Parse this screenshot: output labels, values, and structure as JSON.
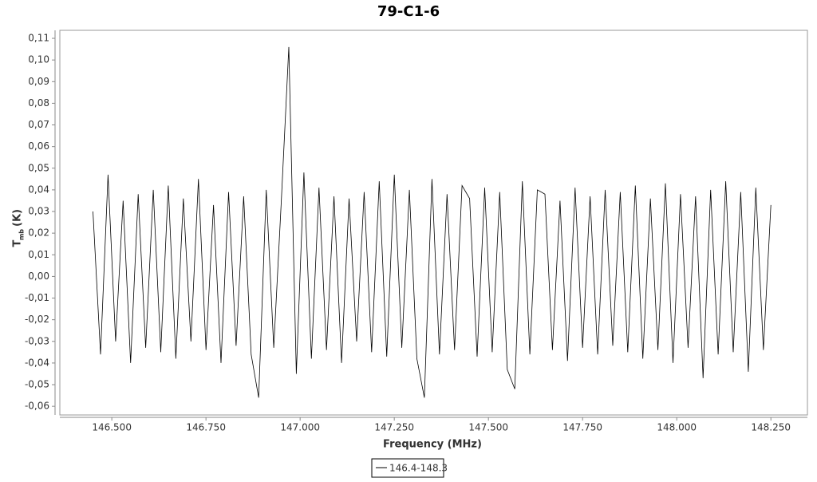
{
  "chart_data": {
    "type": "line",
    "title": "79-C1-6",
    "x_label": "Frequency (MHz)",
    "y_label": "T",
    "y_label_sub": "mb",
    "y_label_unit": "(K)",
    "xlim": [
      146.362,
      148.347
    ],
    "ylim": [
      -0.064,
      0.1137
    ],
    "xticks": [
      {
        "value": 146.5,
        "label": "146.500"
      },
      {
        "value": 146.75,
        "label": "146.750"
      },
      {
        "value": 147.0,
        "label": "147.000"
      },
      {
        "value": 147.25,
        "label": "147.250"
      },
      {
        "value": 147.5,
        "label": "147.500"
      },
      {
        "value": 147.75,
        "label": "147.750"
      },
      {
        "value": 148.0,
        "label": "148.000"
      },
      {
        "value": 148.25,
        "label": "148.250"
      }
    ],
    "yticks": [
      {
        "value": -0.06,
        "label": "-0,06"
      },
      {
        "value": -0.05,
        "label": "-0,05"
      },
      {
        "value": -0.04,
        "label": "-0,04"
      },
      {
        "value": -0.03,
        "label": "-0,03"
      },
      {
        "value": -0.02,
        "label": "-0,02"
      },
      {
        "value": -0.01,
        "label": "-0,01"
      },
      {
        "value": 0,
        "label": "0,00"
      },
      {
        "value": 0.01,
        "label": "0,01"
      },
      {
        "value": 0.02,
        "label": "0,02"
      },
      {
        "value": 0.03,
        "label": "0,03"
      },
      {
        "value": 0.04,
        "label": "0,04"
      },
      {
        "value": 0.05,
        "label": "0,05"
      },
      {
        "value": 0.06,
        "label": "0,06"
      },
      {
        "value": 0.07,
        "label": "0,07"
      },
      {
        "value": 0.08,
        "label": "0,08"
      },
      {
        "value": 0.09,
        "label": "0,09"
      },
      {
        "value": 0.1,
        "label": "0,10"
      },
      {
        "value": 0.11,
        "label": "0,11"
      }
    ],
    "x": [
      146.45,
      146.47,
      146.49,
      146.51,
      146.53,
      146.55,
      146.57,
      146.59,
      146.61,
      146.63,
      146.65,
      146.67,
      146.69,
      146.71,
      146.73,
      146.75,
      146.77,
      146.79,
      146.81,
      146.83,
      146.85,
      146.87,
      146.89,
      146.91,
      146.93,
      146.95,
      146.97,
      146.99,
      147.01,
      147.03,
      147.05,
      147.07,
      147.09,
      147.11,
      147.13,
      147.15,
      147.17,
      147.19,
      147.21,
      147.23,
      147.25,
      147.27,
      147.29,
      147.31,
      147.33,
      147.35,
      147.37,
      147.39,
      147.41,
      147.43,
      147.45,
      147.47,
      147.49,
      147.51,
      147.53,
      147.55,
      147.57,
      147.59,
      147.61,
      147.63,
      147.65,
      147.67,
      147.69,
      147.71,
      147.73,
      147.75,
      147.77,
      147.79,
      147.81,
      147.83,
      147.85,
      147.87,
      147.89,
      147.91,
      147.93,
      147.95,
      147.97,
      147.99,
      148.01,
      148.03,
      148.05,
      148.07,
      148.09,
      148.11,
      148.13,
      148.15,
      148.17,
      148.19,
      148.21,
      148.23,
      148.25
    ],
    "series": [
      {
        "name": "146.4-148.3",
        "color": "#000000",
        "values": [
          0.03,
          -0.036,
          0.047,
          -0.03,
          0.035,
          -0.04,
          0.038,
          -0.033,
          0.04,
          -0.035,
          0.042,
          -0.038,
          0.036,
          -0.03,
          0.045,
          -0.034,
          0.033,
          -0.04,
          0.039,
          -0.032,
          0.037,
          -0.036,
          -0.056,
          0.04,
          -0.033,
          0.035,
          0.106,
          -0.045,
          0.048,
          -0.038,
          0.041,
          -0.034,
          0.037,
          -0.04,
          0.036,
          -0.03,
          0.039,
          -0.035,
          0.044,
          -0.037,
          0.047,
          -0.033,
          0.04,
          -0.038,
          -0.056,
          0.045,
          -0.036,
          0.038,
          -0.034,
          0.042,
          0.036,
          -0.037,
          0.041,
          -0.035,
          0.039,
          -0.043,
          -0.052,
          0.044,
          -0.036,
          0.04,
          0.038,
          -0.034,
          0.035,
          -0.039,
          0.041,
          -0.033,
          0.037,
          -0.036,
          0.04,
          -0.032,
          0.039,
          -0.035,
          0.042,
          -0.038,
          0.036,
          -0.034,
          0.043,
          -0.04,
          0.038,
          -0.033,
          0.037,
          -0.047,
          0.04,
          -0.036,
          0.044,
          -0.035,
          0.039,
          -0.044,
          0.041,
          -0.034,
          0.033
        ]
      }
    ]
  }
}
